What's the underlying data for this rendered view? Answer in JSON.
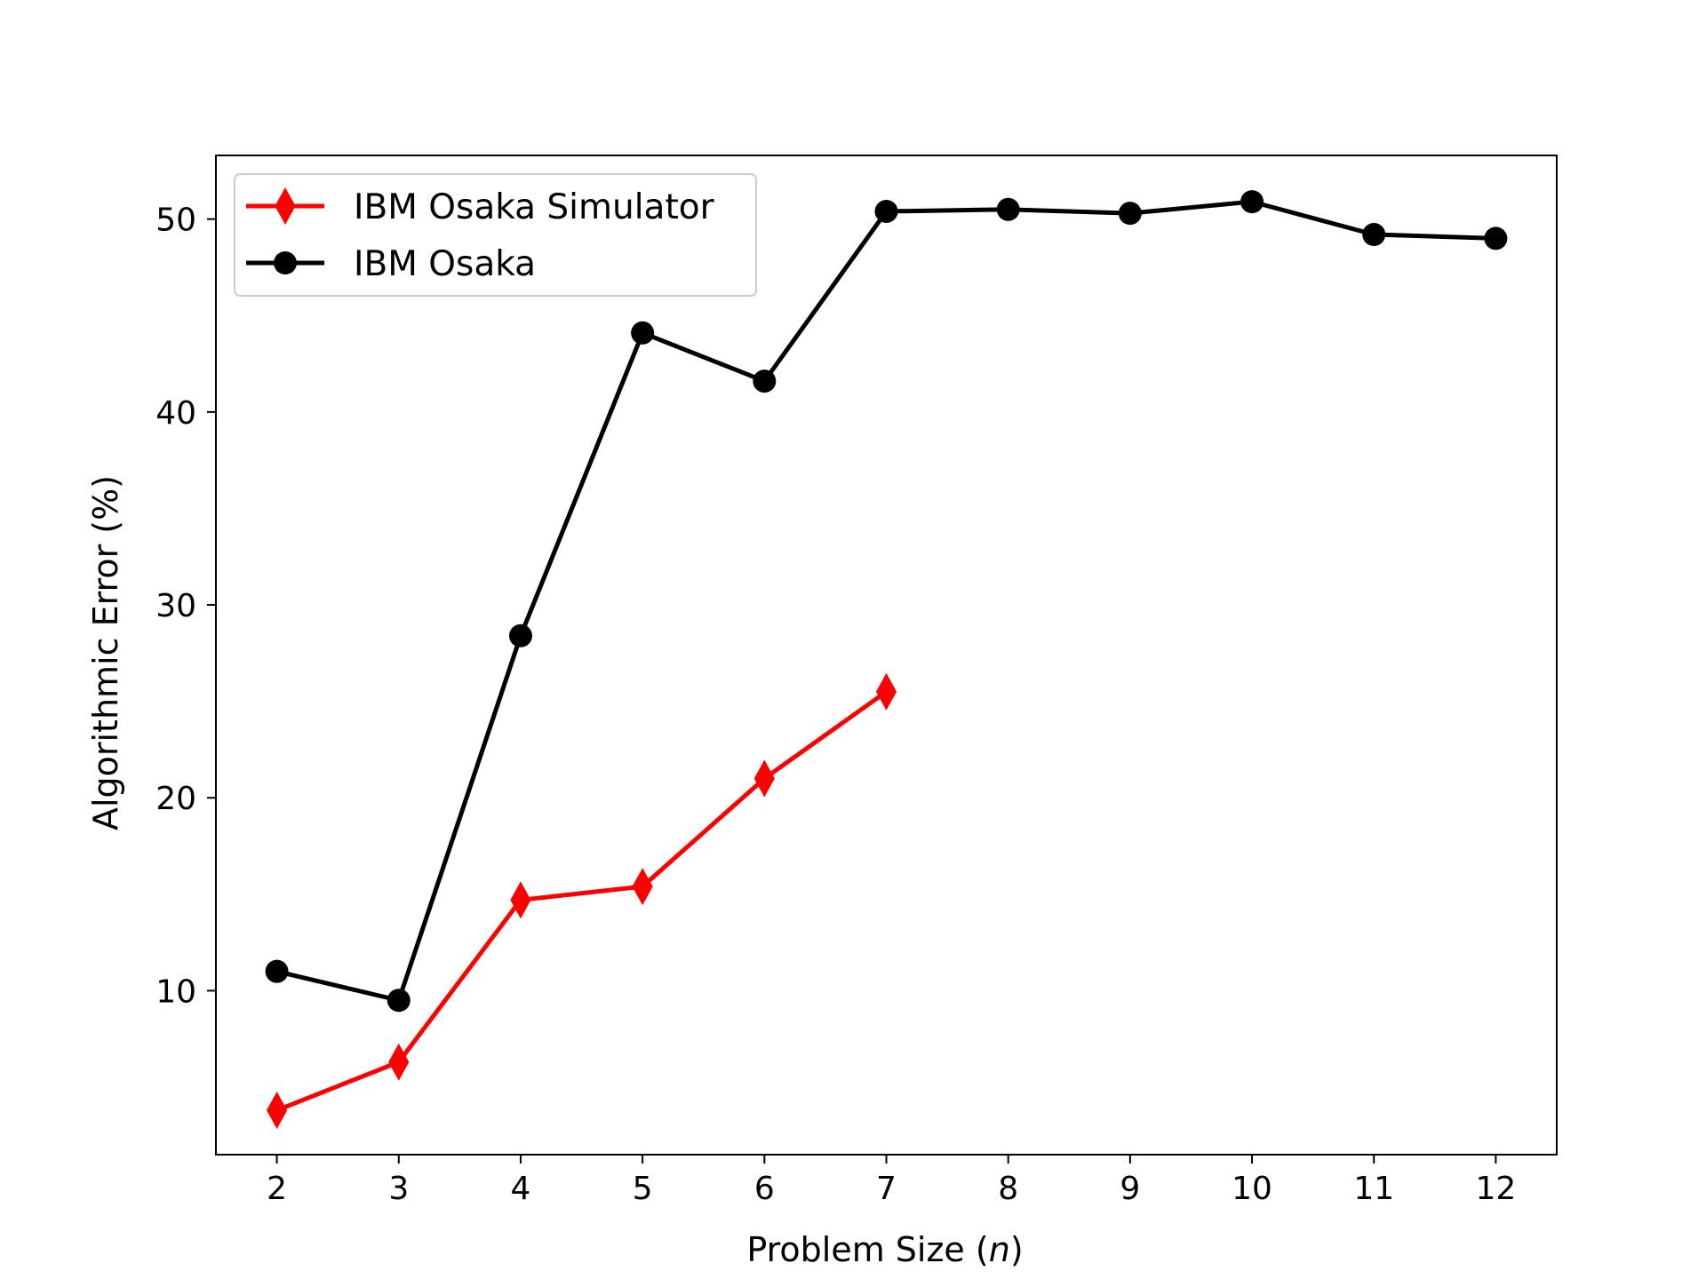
{
  "chart_data": {
    "type": "line",
    "title": "",
    "xlabel": "Problem Size (",
    "xlabel_var": "n",
    "xlabel_close": ")",
    "ylabel": "Algorithmic Error (%)",
    "xlim": [
      1.5,
      12.5
    ],
    "ylim": [
      1.5,
      53.3
    ],
    "x_ticks": [
      2,
      3,
      4,
      5,
      6,
      7,
      8,
      9,
      10,
      11,
      12
    ],
    "y_ticks": [
      10,
      20,
      30,
      40,
      50
    ],
    "grid": false,
    "legend_position": "top-left",
    "series": [
      {
        "name": "IBM Osaka Simulator",
        "color": "#ff0000",
        "marker": "diamond",
        "x": [
          2,
          3,
          4,
          5,
          6,
          7
        ],
        "y": [
          3.8,
          6.3,
          14.7,
          15.4,
          21.0,
          25.5
        ]
      },
      {
        "name": "IBM Osaka",
        "color": "#000000",
        "marker": "circle",
        "x": [
          2,
          3,
          4,
          5,
          6,
          7,
          8,
          9,
          10,
          11,
          12
        ],
        "y": [
          11.0,
          9.5,
          28.4,
          44.1,
          41.6,
          50.4,
          50.5,
          50.3,
          50.9,
          49.2,
          49.0
        ]
      }
    ]
  }
}
